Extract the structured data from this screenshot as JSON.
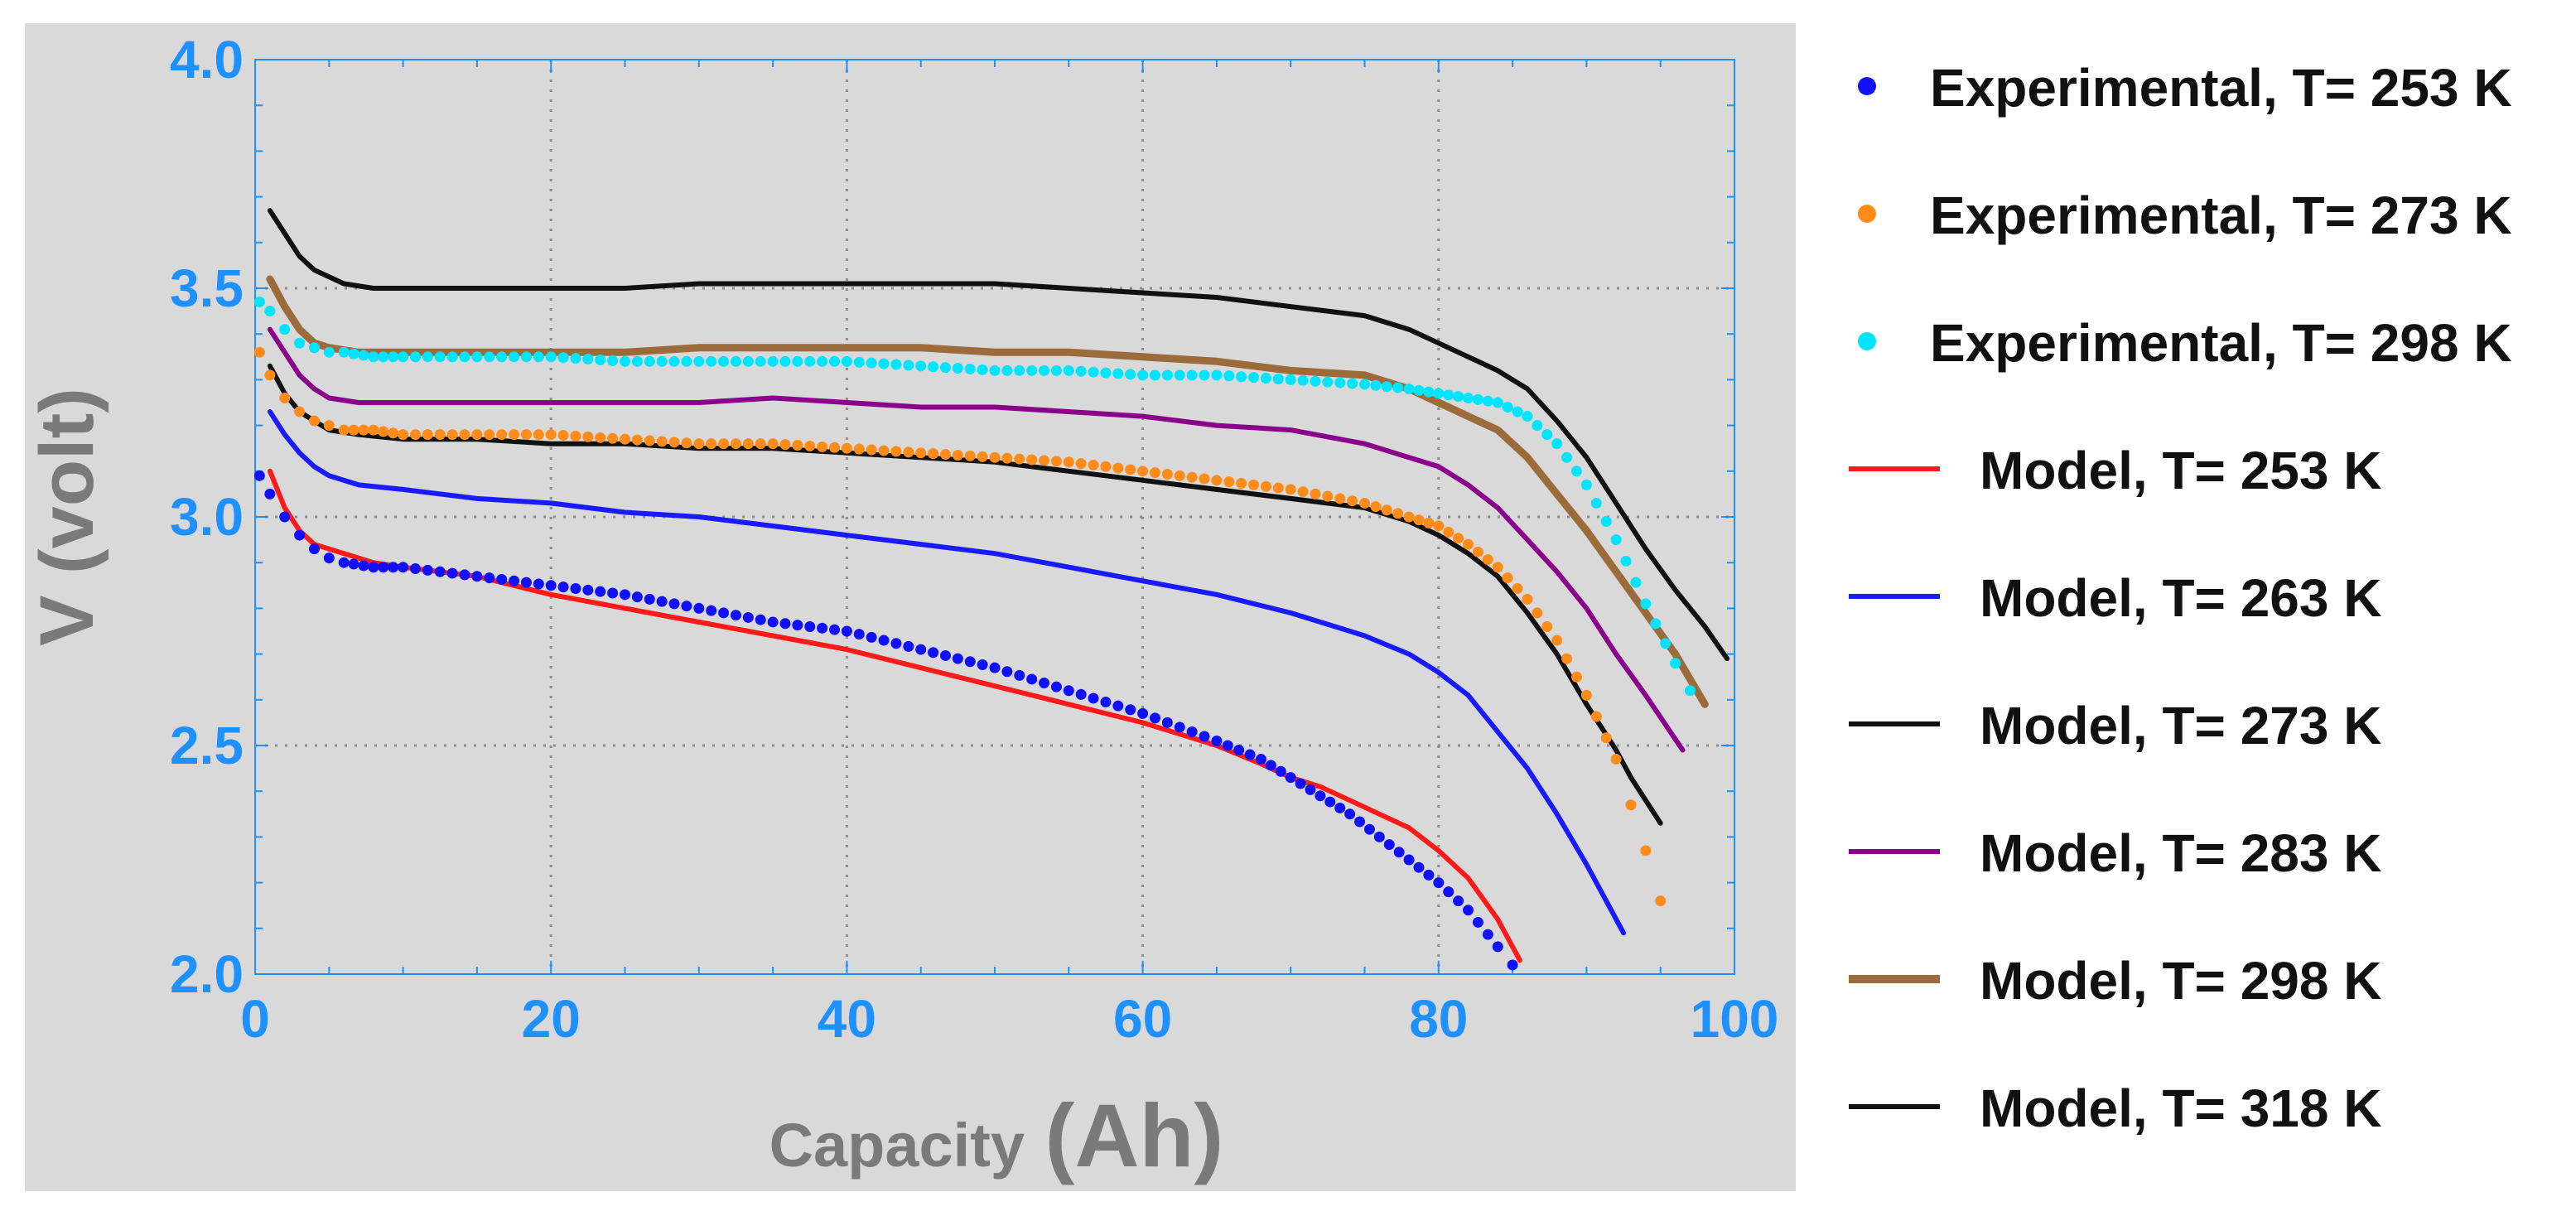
{
  "chart_data": {
    "type": "line",
    "title": "",
    "xlabel": {
      "main": "Capacity",
      "unit": "(Ah)"
    },
    "ylabel": "V (volt)",
    "xlim": [
      0,
      100
    ],
    "ylim": [
      2.0,
      4.0
    ],
    "x_ticks": [
      "0",
      "20",
      "40",
      "60",
      "80",
      "100"
    ],
    "y_ticks": [
      "2.0",
      "2.5",
      "3.0",
      "3.5",
      "4.0"
    ],
    "grid": "dotted",
    "legend_position": "right",
    "colors": {
      "background": "#d9d9d9",
      "axis": "#1e90ff",
      "grid": "#8c8c8c"
    },
    "series": [
      {
        "name": "Experimental, T= 253 K",
        "kind": "experimental",
        "color": "#1010ff",
        "points": [
          [
            0.3,
            3.09
          ],
          [
            1,
            3.05
          ],
          [
            2,
            3.0
          ],
          [
            3,
            2.96
          ],
          [
            4,
            2.93
          ],
          [
            5,
            2.91
          ],
          [
            6,
            2.9
          ],
          [
            8,
            2.89
          ],
          [
            10,
            2.89
          ],
          [
            15,
            2.87
          ],
          [
            20,
            2.85
          ],
          [
            25,
            2.83
          ],
          [
            30,
            2.8
          ],
          [
            35,
            2.77
          ],
          [
            40,
            2.75
          ],
          [
            45,
            2.71
          ],
          [
            50,
            2.67
          ],
          [
            55,
            2.62
          ],
          [
            60,
            2.57
          ],
          [
            65,
            2.51
          ],
          [
            68,
            2.47
          ],
          [
            70,
            2.43
          ],
          [
            72,
            2.39
          ],
          [
            74,
            2.35
          ],
          [
            76,
            2.3
          ],
          [
            78,
            2.25
          ],
          [
            80,
            2.2
          ],
          [
            82,
            2.14
          ],
          [
            84,
            2.06
          ],
          [
            85,
            2.02
          ]
        ]
      },
      {
        "name": "Experimental, T= 273 K",
        "kind": "experimental",
        "color": "#ff8c1a",
        "points": [
          [
            0.3,
            3.36
          ],
          [
            1,
            3.31
          ],
          [
            2,
            3.26
          ],
          [
            3,
            3.23
          ],
          [
            4,
            3.21
          ],
          [
            5,
            3.2
          ],
          [
            6,
            3.19
          ],
          [
            8,
            3.19
          ],
          [
            10,
            3.18
          ],
          [
            15,
            3.18
          ],
          [
            20,
            3.18
          ],
          [
            25,
            3.17
          ],
          [
            30,
            3.16
          ],
          [
            35,
            3.16
          ],
          [
            40,
            3.15
          ],
          [
            45,
            3.14
          ],
          [
            50,
            3.13
          ],
          [
            55,
            3.12
          ],
          [
            60,
            3.1
          ],
          [
            65,
            3.08
          ],
          [
            70,
            3.06
          ],
          [
            75,
            3.03
          ],
          [
            78,
            3.0
          ],
          [
            80,
            2.98
          ],
          [
            82,
            2.94
          ],
          [
            84,
            2.89
          ],
          [
            86,
            2.82
          ],
          [
            88,
            2.73
          ],
          [
            90,
            2.61
          ],
          [
            92,
            2.47
          ],
          [
            93,
            2.37
          ],
          [
            94,
            2.27
          ],
          [
            95,
            2.16
          ]
        ]
      },
      {
        "name": "Experimental, T= 298 K",
        "kind": "experimental",
        "color": "#00e5ff",
        "points": [
          [
            0.3,
            3.47
          ],
          [
            1,
            3.45
          ],
          [
            2,
            3.41
          ],
          [
            3,
            3.38
          ],
          [
            4,
            3.37
          ],
          [
            5,
            3.36
          ],
          [
            6,
            3.36
          ],
          [
            8,
            3.35
          ],
          [
            10,
            3.35
          ],
          [
            15,
            3.35
          ],
          [
            20,
            3.35
          ],
          [
            25,
            3.34
          ],
          [
            30,
            3.34
          ],
          [
            35,
            3.34
          ],
          [
            40,
            3.34
          ],
          [
            45,
            3.33
          ],
          [
            50,
            3.32
          ],
          [
            55,
            3.32
          ],
          [
            60,
            3.31
          ],
          [
            65,
            3.31
          ],
          [
            70,
            3.3
          ],
          [
            75,
            3.29
          ],
          [
            78,
            3.28
          ],
          [
            80,
            3.27
          ],
          [
            82,
            3.26
          ],
          [
            84,
            3.25
          ],
          [
            86,
            3.22
          ],
          [
            88,
            3.16
          ],
          [
            90,
            3.07
          ],
          [
            92,
            2.95
          ],
          [
            94,
            2.81
          ],
          [
            96,
            2.68
          ],
          [
            97,
            2.62
          ]
        ]
      },
      {
        "name": "Model, T= 253 K",
        "kind": "model",
        "color": "#ff1a1a",
        "points": [
          [
            1,
            3.1
          ],
          [
            2,
            3.02
          ],
          [
            3,
            2.97
          ],
          [
            4,
            2.94
          ],
          [
            6,
            2.92
          ],
          [
            8,
            2.9
          ],
          [
            10,
            2.89
          ],
          [
            15,
            2.87
          ],
          [
            20,
            2.83
          ],
          [
            25,
            2.8
          ],
          [
            30,
            2.77
          ],
          [
            35,
            2.74
          ],
          [
            40,
            2.71
          ],
          [
            45,
            2.67
          ],
          [
            50,
            2.63
          ],
          [
            55,
            2.59
          ],
          [
            60,
            2.55
          ],
          [
            65,
            2.5
          ],
          [
            68,
            2.46
          ],
          [
            70,
            2.43
          ],
          [
            72,
            2.41
          ],
          [
            74,
            2.38
          ],
          [
            76,
            2.35
          ],
          [
            78,
            2.32
          ],
          [
            80,
            2.27
          ],
          [
            82,
            2.21
          ],
          [
            84,
            2.12
          ],
          [
            85.5,
            2.03
          ]
        ]
      },
      {
        "name": "Model, T= 263 K",
        "kind": "model",
        "color": "#1a1aff",
        "points": [
          [
            1,
            3.23
          ],
          [
            2,
            3.18
          ],
          [
            3,
            3.14
          ],
          [
            4,
            3.11
          ],
          [
            5,
            3.09
          ],
          [
            7,
            3.07
          ],
          [
            10,
            3.06
          ],
          [
            15,
            3.04
          ],
          [
            20,
            3.03
          ],
          [
            25,
            3.01
          ],
          [
            30,
            3.0
          ],
          [
            35,
            2.98
          ],
          [
            40,
            2.96
          ],
          [
            45,
            2.94
          ],
          [
            50,
            2.92
          ],
          [
            55,
            2.89
          ],
          [
            60,
            2.86
          ],
          [
            65,
            2.83
          ],
          [
            70,
            2.79
          ],
          [
            75,
            2.74
          ],
          [
            78,
            2.7
          ],
          [
            80,
            2.66
          ],
          [
            82,
            2.61
          ],
          [
            84,
            2.53
          ],
          [
            86,
            2.45
          ],
          [
            88,
            2.35
          ],
          [
            90,
            2.24
          ],
          [
            92.5,
            2.09
          ]
        ]
      },
      {
        "name": "Model, T= 273 K",
        "kind": "model",
        "color": "#111111",
        "points": [
          [
            1,
            3.33
          ],
          [
            2,
            3.27
          ],
          [
            3,
            3.23
          ],
          [
            4,
            3.21
          ],
          [
            5,
            3.19
          ],
          [
            7,
            3.18
          ],
          [
            10,
            3.17
          ],
          [
            15,
            3.17
          ],
          [
            20,
            3.16
          ],
          [
            25,
            3.16
          ],
          [
            30,
            3.15
          ],
          [
            35,
            3.15
          ],
          [
            40,
            3.14
          ],
          [
            45,
            3.13
          ],
          [
            50,
            3.12
          ],
          [
            55,
            3.1
          ],
          [
            60,
            3.08
          ],
          [
            65,
            3.06
          ],
          [
            70,
            3.04
          ],
          [
            75,
            3.02
          ],
          [
            78,
            2.99
          ],
          [
            80,
            2.96
          ],
          [
            82,
            2.92
          ],
          [
            84,
            2.87
          ],
          [
            86,
            2.79
          ],
          [
            88,
            2.7
          ],
          [
            90,
            2.59
          ],
          [
            92,
            2.49
          ],
          [
            93,
            2.43
          ],
          [
            95,
            2.33
          ]
        ]
      },
      {
        "name": "Model, T= 283 K",
        "kind": "model",
        "color": "#8b008b",
        "points": [
          [
            1,
            3.41
          ],
          [
            2,
            3.36
          ],
          [
            3,
            3.31
          ],
          [
            4,
            3.28
          ],
          [
            5,
            3.26
          ],
          [
            7,
            3.25
          ],
          [
            10,
            3.25
          ],
          [
            15,
            3.25
          ],
          [
            20,
            3.25
          ],
          [
            25,
            3.25
          ],
          [
            30,
            3.25
          ],
          [
            35,
            3.26
          ],
          [
            40,
            3.25
          ],
          [
            45,
            3.24
          ],
          [
            50,
            3.24
          ],
          [
            55,
            3.23
          ],
          [
            60,
            3.22
          ],
          [
            65,
            3.2
          ],
          [
            70,
            3.19
          ],
          [
            75,
            3.16
          ],
          [
            78,
            3.13
          ],
          [
            80,
            3.11
          ],
          [
            82,
            3.07
          ],
          [
            84,
            3.02
          ],
          [
            86,
            2.95
          ],
          [
            88,
            2.88
          ],
          [
            90,
            2.8
          ],
          [
            92,
            2.7
          ],
          [
            94,
            2.61
          ],
          [
            96.5,
            2.49
          ]
        ]
      },
      {
        "name": "Model, T= 298 K",
        "kind": "model",
        "color": "#9c6b3c",
        "points": [
          [
            1,
            3.52
          ],
          [
            2,
            3.46
          ],
          [
            3,
            3.41
          ],
          [
            4,
            3.38
          ],
          [
            5,
            3.37
          ],
          [
            7,
            3.36
          ],
          [
            10,
            3.36
          ],
          [
            15,
            3.36
          ],
          [
            20,
            3.36
          ],
          [
            25,
            3.36
          ],
          [
            30,
            3.37
          ],
          [
            35,
            3.37
          ],
          [
            40,
            3.37
          ],
          [
            45,
            3.37
          ],
          [
            50,
            3.36
          ],
          [
            55,
            3.36
          ],
          [
            60,
            3.35
          ],
          [
            65,
            3.34
          ],
          [
            70,
            3.32
          ],
          [
            75,
            3.31
          ],
          [
            78,
            3.28
          ],
          [
            80,
            3.25
          ],
          [
            82,
            3.22
          ],
          [
            84,
            3.19
          ],
          [
            86,
            3.13
          ],
          [
            88,
            3.05
          ],
          [
            90,
            2.97
          ],
          [
            92,
            2.88
          ],
          [
            94,
            2.79
          ],
          [
            96,
            2.7
          ],
          [
            98,
            2.59
          ]
        ]
      },
      {
        "name": "Model, T= 318 K",
        "kind": "model",
        "color": "#111111",
        "points": [
          [
            1,
            3.67
          ],
          [
            2,
            3.62
          ],
          [
            3,
            3.57
          ],
          [
            4,
            3.54
          ],
          [
            6,
            3.51
          ],
          [
            8,
            3.5
          ],
          [
            10,
            3.5
          ],
          [
            15,
            3.5
          ],
          [
            20,
            3.5
          ],
          [
            25,
            3.5
          ],
          [
            30,
            3.51
          ],
          [
            35,
            3.51
          ],
          [
            40,
            3.51
          ],
          [
            45,
            3.51
          ],
          [
            50,
            3.51
          ],
          [
            55,
            3.5
          ],
          [
            60,
            3.49
          ],
          [
            65,
            3.48
          ],
          [
            70,
            3.46
          ],
          [
            75,
            3.44
          ],
          [
            78,
            3.41
          ],
          [
            80,
            3.38
          ],
          [
            82,
            3.35
          ],
          [
            84,
            3.32
          ],
          [
            86,
            3.28
          ],
          [
            88,
            3.21
          ],
          [
            90,
            3.13
          ],
          [
            92,
            3.03
          ],
          [
            94,
            2.93
          ],
          [
            96,
            2.84
          ],
          [
            98,
            2.76
          ],
          [
            99.5,
            2.69
          ]
        ]
      }
    ]
  }
}
